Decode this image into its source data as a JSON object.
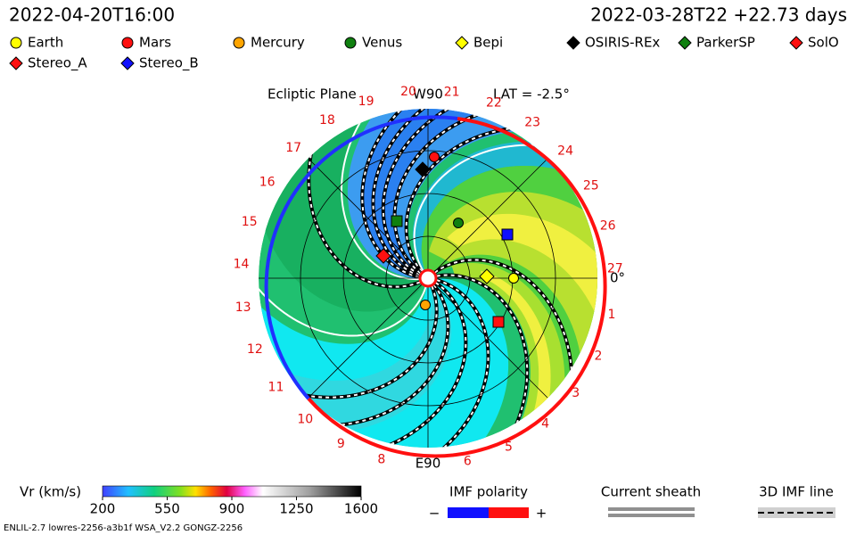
{
  "header": {
    "sim_time": "2022-04-20T16:00",
    "ref_time": "2022-03-28T22 +22.73 days"
  },
  "legend": [
    {
      "label": "Earth",
      "shape": "circle",
      "color": "#ffff00"
    },
    {
      "label": "Mars",
      "shape": "circle",
      "color": "#ff1010"
    },
    {
      "label": "Mercury",
      "shape": "circle",
      "color": "#ffa500"
    },
    {
      "label": "Venus",
      "shape": "circle",
      "color": "#108010"
    },
    {
      "label": "Bepi",
      "shape": "diamond",
      "color": "#ffff00"
    },
    {
      "label": "OSIRIS-REx",
      "shape": "diamond",
      "color": "#000000"
    },
    {
      "label": "ParkerSP",
      "shape": "diamond",
      "color": "#108010"
    },
    {
      "label": "SolO",
      "shape": "diamond",
      "color": "#ff1010"
    },
    {
      "label": "Stereo_A",
      "shape": "diamond",
      "color": "#ff1010"
    },
    {
      "label": "Stereo_B",
      "shape": "diamond",
      "color": "#1010ff"
    }
  ],
  "plot": {
    "plane": "Ecliptic Plane",
    "top": "W90",
    "bottom": "E90",
    "latitude": "LAT = -2.5°",
    "right": "0°",
    "sectors": [
      1,
      2,
      3,
      4,
      5,
      6,
      8,
      9,
      10,
      11,
      12,
      13,
      14,
      15,
      16,
      17,
      18,
      19,
      20,
      21,
      22,
      23,
      24,
      25,
      26,
      27
    ]
  },
  "colorbar": {
    "label": "Vr (km/s)",
    "range": [
      200,
      1600
    ],
    "ticks": [
      200,
      550,
      900,
      1250,
      1600
    ]
  },
  "imf": {
    "title": "IMF polarity",
    "minus": "−",
    "plus": "+"
  },
  "sheath": {
    "title": "Current sheath"
  },
  "imf_line": {
    "title": "3D IMF line"
  },
  "footer": "ENLIL-2.7 lowres-2256-a3b1f WSA_V2.2 GONGZ-2256"
}
